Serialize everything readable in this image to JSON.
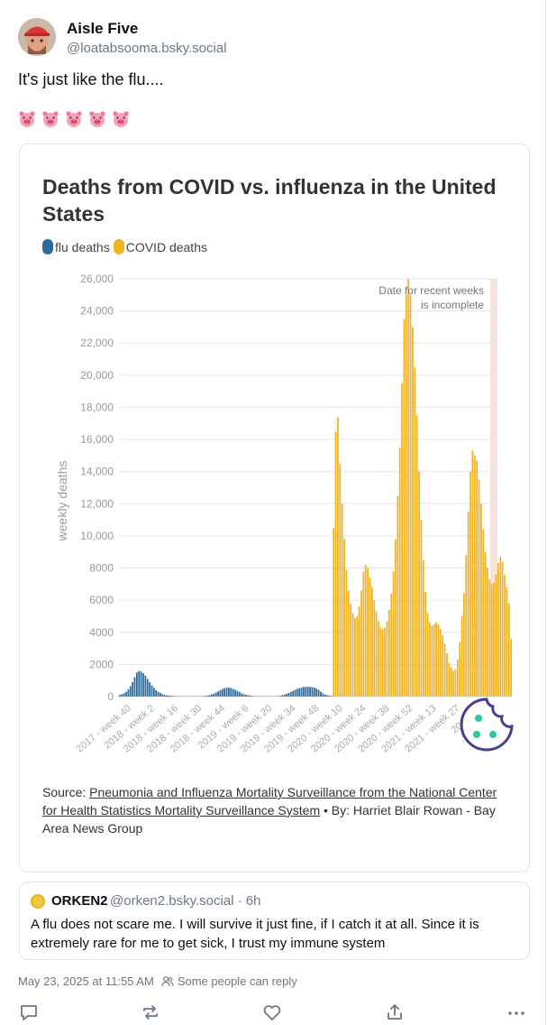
{
  "author": {
    "display_name": "Aisle Five",
    "handle": "@loatabsooma.bsky.social"
  },
  "post_text": "It's just like the flu....",
  "emoji": [
    "pig-face",
    "pig-face",
    "pig-face",
    "pig-face",
    "pig-face"
  ],
  "embed": {
    "title": "Deaths from COVID vs. influenza in the United States",
    "legend": [
      {
        "label": "flu deaths",
        "color": "#2b6a9b"
      },
      {
        "label": "COVID deaths",
        "color": "#f0b323"
      }
    ],
    "annotation_line1": "Date for recent weeks",
    "annotation_line2": "is incomplete",
    "source_prefix": "Source: ",
    "source_link": "Pneumonia and Influenza Mortality Surveillance from the National Center for Health Statistics Mortality Surveillance System",
    "source_suffix": " • By: Harriet Blair Rowan - Bay Area News Group"
  },
  "chart_data": {
    "type": "bar",
    "title": "Deaths from COVID vs. influenza in the United States",
    "ylabel": "weekly deaths",
    "ylim": [
      0,
      26000
    ],
    "yticks": [
      "0",
      "2000",
      "4000",
      "6000",
      "8000",
      "10,000",
      "12,000",
      "14,000",
      "16,000",
      "18,000",
      "20,000",
      "22,000",
      "24,000",
      "26,000"
    ],
    "xticks": [
      "2017 - week 40",
      "2018 - week 2",
      "2018 - week 16",
      "2018 - week 30",
      "2018 - week 44",
      "2019 - week 6",
      "2019 - week 20",
      "2019 - week 34",
      "2019 - week 48",
      "2020 - week 10",
      "2020 - week 24",
      "2020 - week 38",
      "2020 - week 52",
      "2021 - week 13",
      "2021 - week 27",
      "2021 - w"
    ],
    "series": [
      {
        "name": "flu deaths",
        "color": "#2b6a9b",
        "values": [
          100,
          150,
          200,
          300,
          450,
          650,
          900,
          1200,
          1500,
          1600,
          1550,
          1450,
          1300,
          1100,
          900,
          700,
          550,
          400,
          300,
          220,
          150,
          100,
          80,
          60,
          50,
          40,
          30,
          30,
          20,
          20,
          20,
          20,
          20,
          20,
          20,
          20,
          20,
          20,
          20,
          30,
          40,
          60,
          90,
          130,
          180,
          250,
          320,
          400,
          470,
          520,
          550,
          560,
          530,
          480,
          420,
          350,
          280,
          200,
          150,
          110,
          80,
          60,
          40,
          30,
          20,
          20,
          20,
          20,
          20,
          20,
          20,
          20,
          20,
          20,
          30,
          50,
          80,
          120,
          170,
          230,
          290,
          360,
          420,
          480,
          520,
          560,
          590,
          600,
          610,
          600,
          580,
          560,
          500,
          420,
          300,
          200,
          120,
          80,
          60,
          40,
          30,
          20,
          20,
          20,
          20,
          20,
          20,
          20,
          20,
          20,
          20,
          20,
          20,
          20,
          20,
          20,
          20,
          20,
          20,
          20,
          20,
          20,
          20,
          20,
          20,
          20,
          20,
          20,
          20,
          20,
          20,
          20,
          20,
          20,
          20,
          20,
          20,
          20,
          20,
          20,
          20,
          20,
          20,
          20,
          20,
          20,
          20,
          20,
          20,
          20,
          20,
          20,
          20,
          20,
          20,
          20,
          20,
          20,
          20,
          20,
          20,
          20,
          20,
          20,
          20,
          20,
          20,
          20,
          20,
          20,
          20,
          20,
          20,
          20,
          20,
          20,
          20
        ]
      },
      {
        "name": "COVID deaths",
        "color": "#f0b323",
        "values": [
          0,
          0,
          0,
          0,
          0,
          0,
          0,
          0,
          0,
          0,
          0,
          0,
          0,
          0,
          0,
          0,
          0,
          0,
          0,
          0,
          0,
          0,
          0,
          0,
          0,
          0,
          0,
          0,
          0,
          0,
          0,
          0,
          0,
          0,
          0,
          0,
          0,
          0,
          0,
          0,
          0,
          0,
          0,
          0,
          0,
          0,
          0,
          0,
          0,
          0,
          0,
          0,
          0,
          0,
          0,
          0,
          0,
          0,
          0,
          0,
          0,
          0,
          0,
          0,
          0,
          0,
          0,
          0,
          0,
          0,
          0,
          0,
          0,
          0,
          0,
          0,
          0,
          0,
          0,
          0,
          0,
          0,
          0,
          0,
          0,
          0,
          0,
          0,
          0,
          0,
          0,
          0,
          0,
          0,
          0,
          0,
          0,
          0,
          0,
          0,
          10500,
          16500,
          17400,
          14500,
          12000,
          9800,
          7900,
          6600,
          5800,
          5200,
          4900,
          5000,
          5600,
          6600,
          7800,
          8200,
          8000,
          7400,
          6800,
          6000,
          5300,
          4700,
          4300,
          4200,
          4300,
          4700,
          5400,
          6400,
          7800,
          9800,
          12500,
          15500,
          19500,
          23500,
          25000,
          26000,
          25000,
          23000,
          20500,
          17500,
          14000,
          11000,
          8500,
          6500,
          5200,
          4600,
          4400,
          4500,
          4600,
          4500,
          4200,
          3800,
          3300,
          2700,
          2100,
          1800,
          1600,
          1700,
          2300,
          3400,
          5000,
          6400,
          8800,
          11500,
          14000,
          15300,
          15000,
          14700,
          13500,
          12000,
          10400,
          9000,
          8000,
          7300,
          7000,
          7100,
          7600,
          8300,
          8700,
          8400,
          7600,
          6800,
          5800,
          3600
        ]
      }
    ],
    "annotation": "Date for recent weeks is incomplete"
  },
  "quote": {
    "display_name": "ORKEN2",
    "handle_time": "@orken2.bsky.social · 6h",
    "text": "A flu does not scare me. I will survive it just fine, if I catch it at all. Since it is extremely rare for me to get sick, I trust my immune system"
  },
  "meta": {
    "timestamp": "May 23, 2025 at 11:55 AM",
    "reply_setting": "Some people can reply"
  },
  "actions": [
    "reply-icon",
    "repost-icon",
    "like-icon",
    "share-icon",
    "more-icon"
  ]
}
